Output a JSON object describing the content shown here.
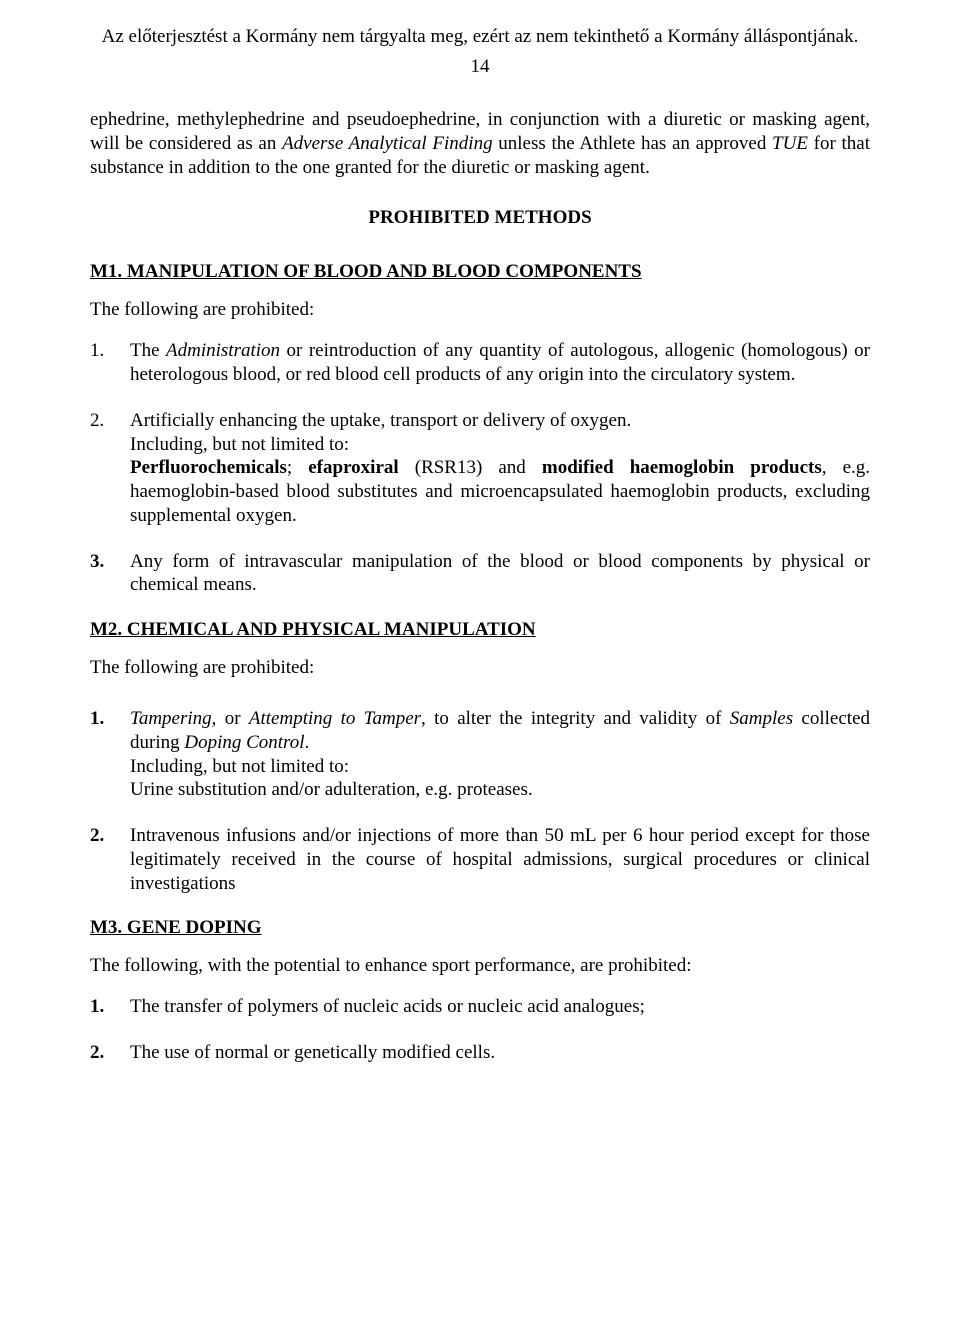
{
  "header_note": "Az előterjesztést a Kormány nem tárgyalta meg, ezért az nem tekinthető a Kormány álláspontjának.",
  "page_number": "14",
  "intro_paragraph": {
    "pre": "ephedrine, methylephedrine and pseudoephedrine, in conjunction with a diuretic or masking agent, will be considered as an ",
    "italic1": "Adverse Analytical Finding",
    "mid": " unless the Athlete has an approved ",
    "italic2": "TUE",
    "post": " for that substance in addition to the one granted for the diuretic or masking agent."
  },
  "section_title": "PROHIBITED METHODS",
  "m1": {
    "heading": "M1. MANIPULATION OF BLOOD AND BLOOD COMPONENTS",
    "lead": "The following are prohibited:",
    "items": [
      {
        "num": "1.",
        "pre": "The ",
        "italic": "Administration",
        "post": " or reintroduction of any quantity of autologous, allogenic (homologous) or heterologous blood, or red blood cell products of any origin into the circulatory system."
      },
      {
        "num": "2.",
        "line1": "Artificially enhancing the uptake, transport or delivery of oxygen.",
        "line2": "Including, but not limited to:",
        "bold1": "Perfluorochemicals",
        "sep1": "; ",
        "bold2": "efaproxiral",
        "paren": " (RSR13) and ",
        "bold3": "modified haemoglobin products",
        "tail": ", e.g. haemoglobin-based blood substitutes and microencapsulated haemoglobin products, excluding supplemental oxygen."
      },
      {
        "num": "3.",
        "text": "Any form of intravascular manipulation of the blood or blood components by physical or chemical means."
      }
    ]
  },
  "m2": {
    "heading": "M2. CHEMICAL AND PHYSICAL MANIPULATION",
    "lead": "The following are prohibited:",
    "items": [
      {
        "num": "1.",
        "italic1": "Tampering,",
        "mid1": " or ",
        "italic2": "Attempting to Tamper",
        "mid2": ", to alter the integrity and validity of ",
        "italic3": "Samples",
        "mid3": " collected during ",
        "italic4": "Doping Control",
        "period": ".",
        "line2": "Including, but not limited to:",
        "line3": "Urine substitution and/or adulteration, e.g. proteases."
      },
      {
        "num": "2.",
        "text": "Intravenous infusions and/or injections of more than 50 mL per 6 hour period except for those legitimately received in the course of hospital admissions, surgical procedures or clinical investigations"
      }
    ]
  },
  "m3": {
    "heading": "M3. GENE DOPING",
    "lead": "The following, with the potential to enhance sport performance, are prohibited:",
    "items": [
      {
        "num": "1.",
        "text": "The transfer of polymers of nucleic acids or nucleic acid analogues;"
      },
      {
        "num": "2.",
        "text": "The use of normal or genetically modified cells."
      }
    ]
  }
}
